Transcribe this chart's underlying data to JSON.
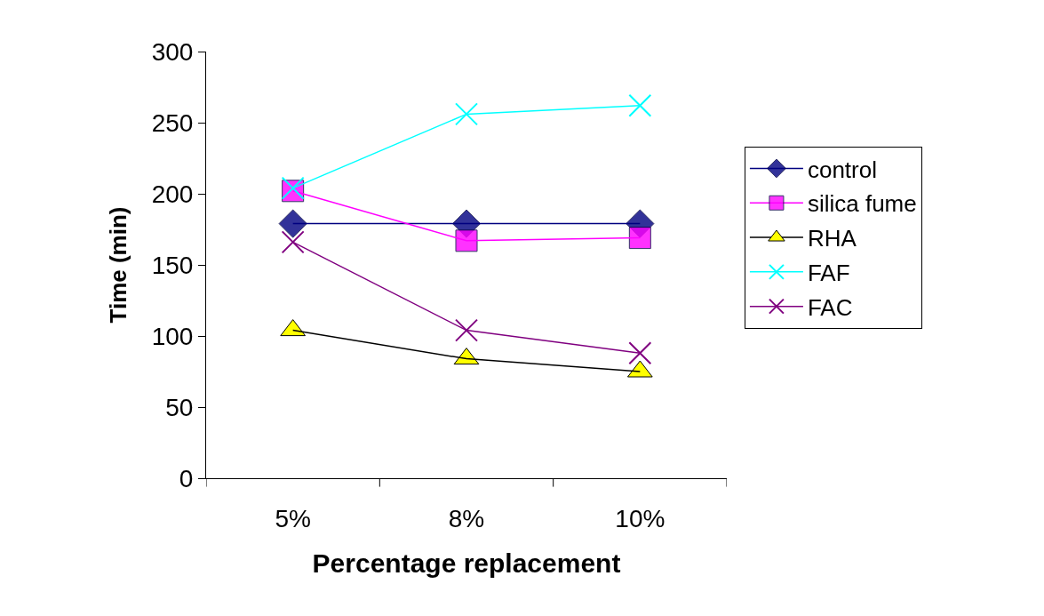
{
  "chart_data": {
    "type": "line",
    "xlabel": "Percentage replacement",
    "ylabel": "Time (min)",
    "categories": [
      "5%",
      "8%",
      "10%"
    ],
    "ylim": [
      0,
      300
    ],
    "yticks": [
      0,
      50,
      100,
      150,
      200,
      250,
      300
    ],
    "legend": "right",
    "series": [
      {
        "name": "control",
        "color": "#000080",
        "marker": "diamond",
        "values": [
          179,
          179,
          179
        ]
      },
      {
        "name": "silica fume",
        "color": "#ff00ff",
        "marker": "square",
        "values": [
          202,
          167,
          169
        ]
      },
      {
        "name": "RHA",
        "color": "#000000",
        "marker": "triangle",
        "values": [
          104,
          84,
          75
        ]
      },
      {
        "name": "FAF",
        "color": "#00ffff",
        "marker": "cross",
        "values": [
          204,
          256,
          262
        ]
      },
      {
        "name": "FAC",
        "color": "#800080",
        "marker": "cross",
        "values": [
          166,
          104,
          88
        ]
      }
    ]
  }
}
